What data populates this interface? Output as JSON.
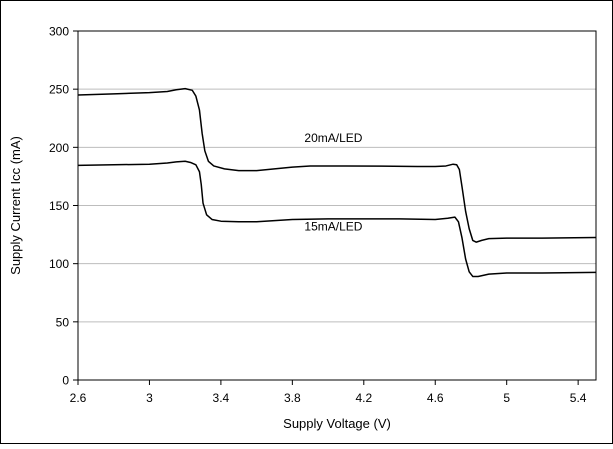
{
  "chart_data": {
    "type": "line",
    "title": "",
    "xlabel": "Supply Voltage (V)",
    "ylabel": "Supply Current Icc (mA)",
    "xlim": [
      2.6,
      5.5
    ],
    "ylim": [
      0,
      300
    ],
    "x_ticks": [
      2.6,
      3,
      3.4,
      3.8,
      4.2,
      4.6,
      5,
      5.4
    ],
    "x_tick_labels": [
      "2.6",
      "3",
      "3.4",
      "3.8",
      "4.2",
      "4.6",
      "5",
      "5.4"
    ],
    "y_ticks": [
      0,
      50,
      100,
      150,
      200,
      250,
      300
    ],
    "y_tick_labels": [
      "0",
      "50",
      "100",
      "150",
      "200",
      "250",
      "300"
    ],
    "grid": "horizontal",
    "legend": "none",
    "series": [
      {
        "name": "20mA/LED",
        "color": "#000000",
        "points": [
          [
            2.6,
            245
          ],
          [
            2.8,
            246
          ],
          [
            3.0,
            247
          ],
          [
            3.1,
            248
          ],
          [
            3.15,
            249.5
          ],
          [
            3.2,
            250.5
          ],
          [
            3.24,
            249
          ],
          [
            3.26,
            244
          ],
          [
            3.28,
            232
          ],
          [
            3.295,
            212
          ],
          [
            3.31,
            197
          ],
          [
            3.33,
            188
          ],
          [
            3.36,
            184
          ],
          [
            3.42,
            181.5
          ],
          [
            3.5,
            180
          ],
          [
            3.6,
            180
          ],
          [
            3.7,
            181.5
          ],
          [
            3.8,
            183
          ],
          [
            3.9,
            184
          ],
          [
            4.1,
            184
          ],
          [
            4.3,
            183.8
          ],
          [
            4.5,
            183.5
          ],
          [
            4.6,
            183.5
          ],
          [
            4.66,
            184
          ],
          [
            4.7,
            185.5
          ],
          [
            4.72,
            185
          ],
          [
            4.735,
            181
          ],
          [
            4.75,
            166
          ],
          [
            4.77,
            145
          ],
          [
            4.79,
            130
          ],
          [
            4.81,
            120
          ],
          [
            4.83,
            118.5
          ],
          [
            4.86,
            120
          ],
          [
            4.9,
            121.5
          ],
          [
            5.0,
            122
          ],
          [
            5.2,
            122
          ],
          [
            5.5,
            122.5
          ]
        ]
      },
      {
        "name": "15mA/LED",
        "color": "#000000",
        "points": [
          [
            2.6,
            184.5
          ],
          [
            2.8,
            185
          ],
          [
            3.0,
            185.5
          ],
          [
            3.1,
            186.5
          ],
          [
            3.15,
            187.5
          ],
          [
            3.2,
            188
          ],
          [
            3.23,
            187
          ],
          [
            3.26,
            185
          ],
          [
            3.28,
            179
          ],
          [
            3.29,
            168
          ],
          [
            3.3,
            152
          ],
          [
            3.32,
            142
          ],
          [
            3.35,
            138
          ],
          [
            3.4,
            136.5
          ],
          [
            3.5,
            136
          ],
          [
            3.6,
            136
          ],
          [
            3.7,
            137
          ],
          [
            3.8,
            138
          ],
          [
            4.0,
            138.5
          ],
          [
            4.2,
            138.5
          ],
          [
            4.4,
            138.5
          ],
          [
            4.6,
            138
          ],
          [
            4.67,
            139
          ],
          [
            4.71,
            140
          ],
          [
            4.73,
            136
          ],
          [
            4.75,
            122
          ],
          [
            4.77,
            104
          ],
          [
            4.79,
            93
          ],
          [
            4.81,
            89
          ],
          [
            4.84,
            89
          ],
          [
            4.9,
            91
          ],
          [
            5.0,
            92
          ],
          [
            5.2,
            92
          ],
          [
            5.5,
            92.5
          ]
        ]
      }
    ],
    "annotations": [
      {
        "text": "20mA/LED",
        "x": 4.03,
        "y": 208
      },
      {
        "text": "15mA/LED",
        "x": 4.03,
        "y": 132
      }
    ]
  }
}
